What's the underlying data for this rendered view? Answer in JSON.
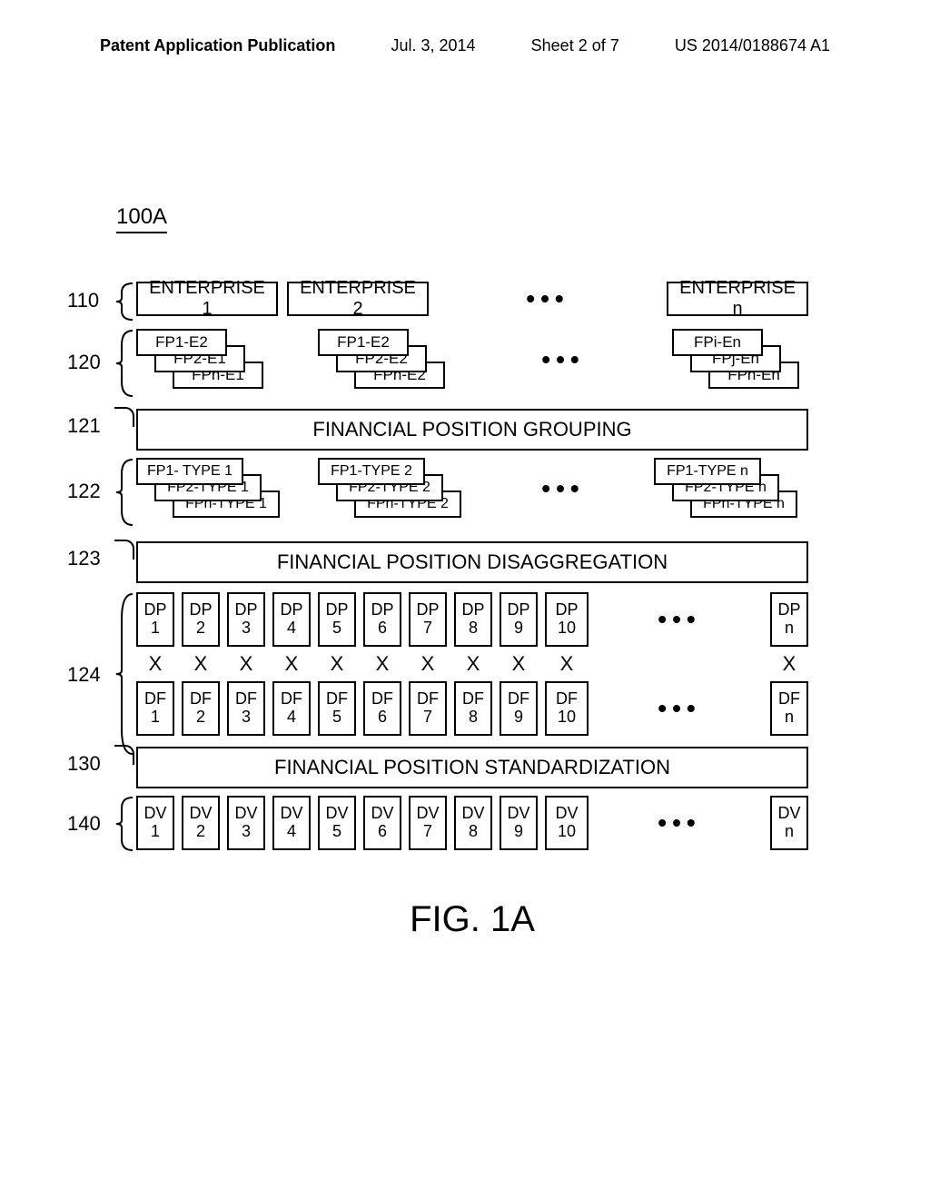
{
  "header": {
    "left": "Patent Application Publication",
    "mid_date": "Jul. 3, 2014",
    "mid_sheet": "Sheet 2 of 7",
    "right": "US 2014/0188674 A1"
  },
  "figref": "100A",
  "labels": {
    "l110": "110",
    "l120": "120",
    "l121": "121",
    "l122": "122",
    "l123": "123",
    "l124": "124",
    "l130": "130",
    "l140": "140"
  },
  "row110": {
    "b1": "ENTERPRISE 1",
    "b2": "ENTERPRISE 2",
    "dots": "•••",
    "bn": "ENTERPRISE n"
  },
  "row120": {
    "g1": {
      "a": "FP1-E2",
      "b": "FP2-E1",
      "c": "FPn-E1"
    },
    "g2": {
      "a": "FP1-E2",
      "b": "FP2-E2",
      "c": "FPn-E2"
    },
    "dots": "•••",
    "gn": {
      "a": "FPi-En",
      "b": "FPj-En",
      "c": "FPn-En"
    }
  },
  "row121": "FINANCIAL POSITION GROUPING",
  "row122": {
    "g1": {
      "a": "FP1- TYPE 1",
      "b": "FP2-TYPE 1",
      "c": "FPn-TYPE 1"
    },
    "g2": {
      "a": "FP1-TYPE 2",
      "b": "FP2-TYPE 2",
      "c": "FPn-TYPE 2"
    },
    "dots": "•••",
    "gn": {
      "a": "FP1-TYPE n",
      "b": "FP2-TYPE n",
      "c": "FPn-TYPE n"
    }
  },
  "row123": "FINANCIAL POSITION DISAGGREGATION",
  "row124": {
    "dp_prefix": "DP",
    "df_prefix": "DF",
    "nums": [
      "1",
      "2",
      "3",
      "4",
      "5",
      "6",
      "7",
      "8",
      "9",
      "10"
    ],
    "dots": "•••",
    "n": "n",
    "x": "X"
  },
  "row130": "FINANCIAL POSITION STANDARDIZATION",
  "row140": {
    "prefix": "DV",
    "nums": [
      "1",
      "2",
      "3",
      "4",
      "5",
      "6",
      "7",
      "8",
      "9",
      "10"
    ],
    "dots": "•••",
    "n": "n"
  },
  "caption": "FIG. 1A",
  "style": {
    "border_color": "#000000",
    "bg_color": "#ffffff",
    "font_main": "Arial",
    "label_fontsize": 22,
    "box_fontsize": 20,
    "caption_fontsize": 40
  }
}
